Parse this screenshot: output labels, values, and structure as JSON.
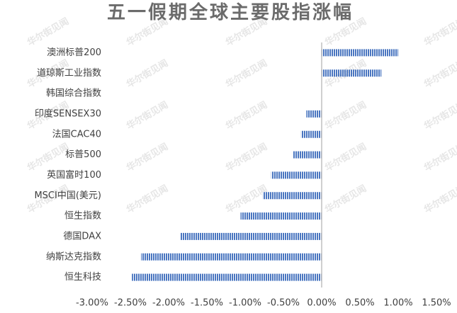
{
  "chart_data": {
    "type": "hbar",
    "title": "五一假期全球主要股指涨幅",
    "watermark": "华尔街见闻",
    "categories": [
      "澳洲标普200",
      "道琼斯工业指数",
      "韩国综合指数",
      "印度SENSEX30",
      "法国CAC40",
      "标普500",
      "英国富时100",
      "MSCI中国(美元)",
      "恒生指数",
      "德国DAX",
      "纳斯达克指数",
      "恒生科技"
    ],
    "values": [
      1.0,
      0.78,
      0,
      -0.2,
      -0.27,
      -0.38,
      -0.66,
      -0.77,
      -1.06,
      -1.85,
      -2.36,
      -2.48
    ],
    "color": "#4a76c0",
    "xlim": [
      -3,
      1.5
    ],
    "xticks": [
      {
        "value": -3,
        "label": "-3.00%"
      },
      {
        "value": -2.5,
        "label": "-2.50%"
      },
      {
        "value": -2,
        "label": "-2.00%"
      },
      {
        "value": -1.5,
        "label": "-1.50%"
      },
      {
        "value": -1,
        "label": "-1.00%"
      },
      {
        "value": -0.5,
        "label": "-0.50%"
      },
      {
        "value": 0,
        "label": "0.00%"
      },
      {
        "value": 0.5,
        "label": "0.50%"
      },
      {
        "value": 1,
        "label": "1.00%"
      },
      {
        "value": 1.5,
        "label": "1.50%"
      }
    ],
    "grid": false
  }
}
